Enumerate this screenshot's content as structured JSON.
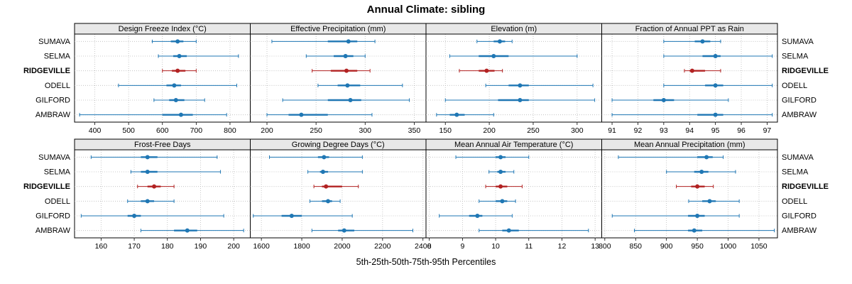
{
  "chart_data": {
    "type": "dot-interval",
    "layout": "2x4 trellis, shared station rows, grid dotted, no legend",
    "title": "Annual Climate: sibling",
    "caption": "5th-25th-50th-75th-95th Percentiles",
    "percentiles": [
      5,
      25,
      50,
      75,
      95
    ],
    "stations": [
      "SUMAVA",
      "SELMA",
      "RIDGEVILLE",
      "ODELL",
      "GILFORD",
      "AMBRAW"
    ],
    "highlighted_station": "RIDGEVILLE",
    "colors": {
      "normal": "#1f77b4",
      "highlight": "#b22222",
      "header_bg": "#e8e8e8",
      "grid": "#bbbbbb",
      "border": "#000000"
    },
    "panels": [
      {
        "label": "Design Freeze Index (°C)",
        "xlim": [
          340,
          860
        ],
        "ticks": [
          400,
          500,
          600,
          700,
          800
        ],
        "values": [
          [
            570,
            625,
            645,
            662,
            700
          ],
          [
            588,
            632,
            650,
            672,
            825
          ],
          [
            600,
            628,
            645,
            668,
            700
          ],
          [
            470,
            612,
            635,
            655,
            820
          ],
          [
            575,
            620,
            640,
            665,
            725
          ],
          [
            355,
            600,
            655,
            690,
            790
          ]
        ]
      },
      {
        "label": "Effective Precipitation (mm)",
        "xlim": [
          183,
          362
        ],
        "ticks": [
          200,
          250,
          300,
          350
        ],
        "values": [
          [
            205,
            262,
            283,
            292,
            310
          ],
          [
            240,
            268,
            280,
            288,
            300
          ],
          [
            246,
            265,
            281,
            292,
            305
          ],
          [
            252,
            272,
            282,
            295,
            338
          ],
          [
            216,
            262,
            285,
            296,
            345
          ],
          [
            200,
            222,
            235,
            262,
            307
          ]
        ]
      },
      {
        "label": "Elevation (m)",
        "xlim": [
          128,
          328
        ],
        "ticks": [
          150,
          200,
          250,
          300
        ],
        "values": [
          [
            186,
            205,
            212,
            218,
            226
          ],
          [
            155,
            188,
            205,
            222,
            300
          ],
          [
            166,
            188,
            197,
            206,
            215
          ],
          [
            196,
            222,
            235,
            245,
            318
          ],
          [
            150,
            210,
            235,
            245,
            320
          ],
          [
            140,
            155,
            163,
            172,
            205
          ]
        ]
      },
      {
        "label": "Fraction of Annual PPT as Rain",
        "xlim": [
          90.6,
          97.4
        ],
        "ticks": [
          91,
          92,
          93,
          94,
          95,
          96,
          97
        ],
        "values": [
          [
            93.0,
            94.2,
            94.5,
            94.8,
            95.2
          ],
          [
            93.0,
            94.5,
            95.0,
            95.2,
            97.2
          ],
          [
            93.8,
            94.0,
            94.1,
            94.6,
            95.2
          ],
          [
            93.0,
            94.6,
            95.0,
            95.3,
            97.2
          ],
          [
            91.0,
            92.6,
            93.0,
            93.4,
            95.5
          ],
          [
            91.0,
            94.3,
            95.0,
            95.3,
            97.2
          ]
        ]
      },
      {
        "label": "Frost-Free Days",
        "xlim": [
          152,
          205
        ],
        "ticks": [
          160,
          170,
          180,
          190,
          200
        ],
        "values": [
          [
            157,
            172,
            174,
            177,
            195
          ],
          [
            169,
            172,
            174,
            177,
            196
          ],
          [
            171,
            174,
            176,
            178,
            182
          ],
          [
            168,
            172,
            174,
            176,
            182
          ],
          [
            154,
            168,
            170,
            172,
            197
          ],
          [
            172,
            182,
            186,
            189,
            203
          ]
        ]
      },
      {
        "label": "Growing Degree Days (°C)",
        "xlim": [
          1545,
          2415
        ],
        "ticks": [
          1600,
          1800,
          2000,
          2200,
          2400
        ],
        "values": [
          [
            1640,
            1880,
            1910,
            1935,
            2100
          ],
          [
            1830,
            1890,
            1905,
            1930,
            2100
          ],
          [
            1860,
            1900,
            1920,
            2000,
            2080
          ],
          [
            1840,
            1900,
            1930,
            1950,
            1990
          ],
          [
            1560,
            1700,
            1750,
            1800,
            2050
          ],
          [
            1850,
            1980,
            2010,
            2060,
            2350
          ]
        ]
      },
      {
        "label": "Mean Annual Air Temperature (°C)",
        "xlim": [
          7.9,
          13.2
        ],
        "ticks": [
          8,
          9,
          10,
          11,
          12,
          13
        ],
        "values": [
          [
            8.8,
            10.0,
            10.15,
            10.3,
            11.0
          ],
          [
            9.8,
            10.05,
            10.15,
            10.3,
            10.55
          ],
          [
            9.7,
            10.0,
            10.15,
            10.35,
            10.8
          ],
          [
            9.5,
            10.0,
            10.2,
            10.35,
            10.6
          ],
          [
            8.3,
            9.2,
            9.45,
            9.6,
            10.5
          ],
          [
            9.5,
            10.2,
            10.4,
            10.7,
            12.8
          ]
        ]
      },
      {
        "label": "Mean Annual Precipitation (mm)",
        "xlim": [
          795,
          1080
        ],
        "ticks": [
          800,
          850,
          900,
          950,
          1000,
          1050
        ],
        "values": [
          [
            822,
            950,
            965,
            975,
            992
          ],
          [
            900,
            945,
            957,
            968,
            1012
          ],
          [
            916,
            940,
            950,
            962,
            976
          ],
          [
            936,
            958,
            970,
            980,
            1018
          ],
          [
            812,
            935,
            950,
            962,
            1018
          ],
          [
            848,
            935,
            945,
            958,
            1075
          ]
        ]
      }
    ]
  }
}
